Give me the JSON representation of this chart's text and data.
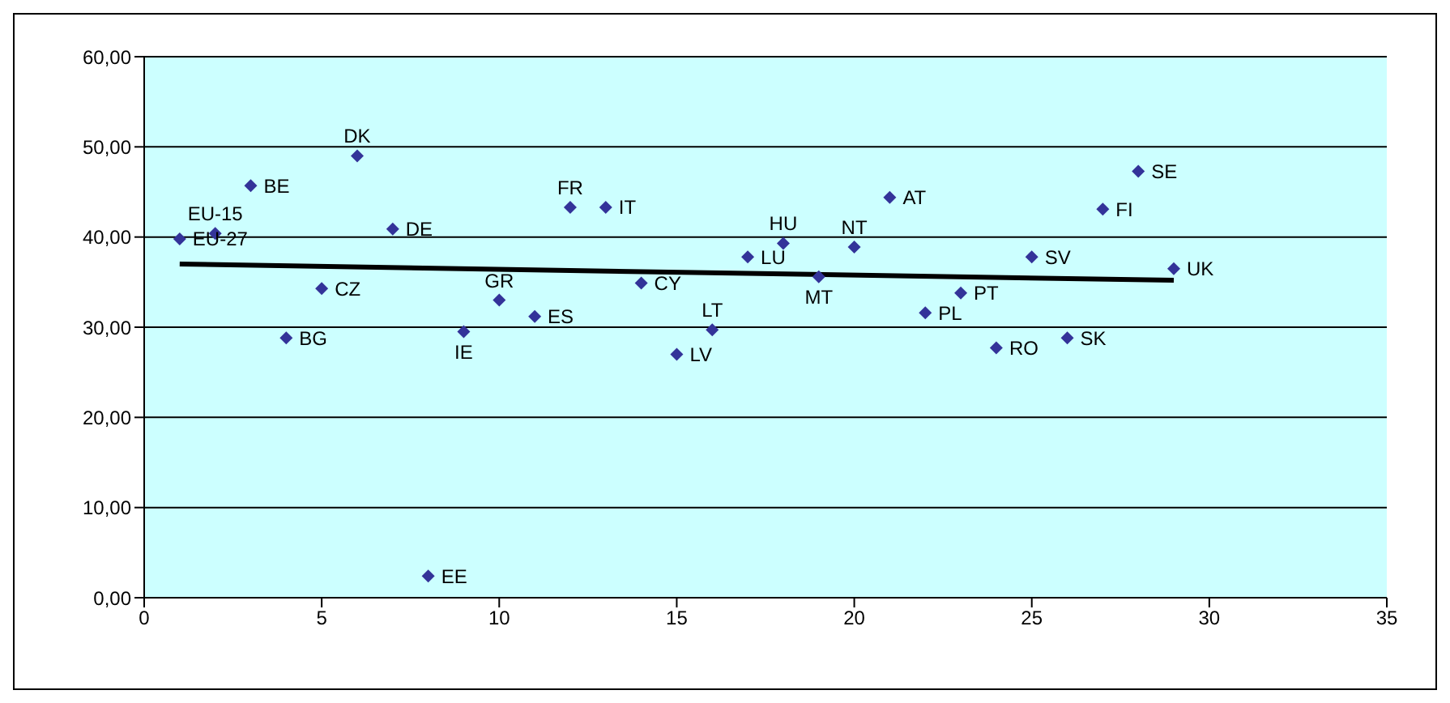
{
  "chart_data": {
    "type": "scatter",
    "x": [
      1,
      2,
      3,
      4,
      5,
      6,
      7,
      8,
      9,
      10,
      11,
      12,
      13,
      14,
      15,
      16,
      17,
      18,
      19,
      20,
      21,
      22,
      23,
      24,
      25,
      26,
      27,
      28,
      29
    ],
    "series": [
      {
        "type": "scatter",
        "color": "#333399",
        "marker": "diamond",
        "values": [
          39.8,
          40.4,
          45.7,
          28.8,
          34.3,
          49.0,
          40.9,
          2.4,
          29.5,
          33.0,
          31.2,
          43.3,
          43.3,
          34.9,
          27.0,
          29.7,
          37.8,
          39.3,
          35.6,
          38.9,
          44.4,
          31.6,
          33.8,
          27.7,
          37.8,
          28.8,
          43.1,
          47.3,
          36.5
        ]
      },
      {
        "type": "line",
        "color": "#000000",
        "x": [
          1,
          29
        ],
        "values": [
          37.0,
          35.2
        ]
      }
    ],
    "grid": "y",
    "legend": false,
    "xlim": [
      0,
      35
    ],
    "xticks": [
      0,
      5,
      10,
      15,
      20,
      25,
      30,
      35
    ],
    "ylim": [
      0,
      60
    ],
    "yticks": [
      {
        "value": 0,
        "label": "0,00"
      },
      {
        "value": 10,
        "label": "10,00"
      },
      {
        "value": 20,
        "label": "20,00"
      },
      {
        "value": 30,
        "label": "30,00"
      },
      {
        "value": 40,
        "label": "40,00"
      },
      {
        "value": 50,
        "label": "50,00"
      },
      {
        "value": 60,
        "label": "60,00"
      }
    ],
    "annotations": [
      {
        "text": "EU-27",
        "x": 1,
        "y": 39.8
      },
      {
        "text": "EU-15",
        "x": 2,
        "y": 40.4
      },
      {
        "text": "BE",
        "x": 3,
        "y": 45.7
      },
      {
        "text": "BG",
        "x": 4,
        "y": 28.8
      },
      {
        "text": "CZ",
        "x": 5,
        "y": 34.3
      },
      {
        "text": "DK",
        "x": 6,
        "y": 49.0
      },
      {
        "text": "DE",
        "x": 7,
        "y": 40.9
      },
      {
        "text": "EE",
        "x": 8,
        "y": 2.4
      },
      {
        "text": "IE",
        "x": 9,
        "y": 29.5
      },
      {
        "text": "GR",
        "x": 10,
        "y": 33.0
      },
      {
        "text": "ES",
        "x": 11,
        "y": 31.2
      },
      {
        "text": "FR",
        "x": 12,
        "y": 43.3
      },
      {
        "text": "IT",
        "x": 13,
        "y": 43.3
      },
      {
        "text": "CY",
        "x": 14,
        "y": 34.9
      },
      {
        "text": "LV",
        "x": 15,
        "y": 27.0
      },
      {
        "text": "LT",
        "x": 16,
        "y": 29.7
      },
      {
        "text": "LU",
        "x": 17,
        "y": 37.8
      },
      {
        "text": "HU",
        "x": 18,
        "y": 39.3
      },
      {
        "text": "MT",
        "x": 19,
        "y": 35.6
      },
      {
        "text": "NT",
        "x": 20,
        "y": 38.9
      },
      {
        "text": "AT",
        "x": 21,
        "y": 44.4
      },
      {
        "text": "PL",
        "x": 22,
        "y": 31.6
      },
      {
        "text": "PT",
        "x": 23,
        "y": 33.8
      },
      {
        "text": "RO",
        "x": 24,
        "y": 27.7
      },
      {
        "text": "SV",
        "x": 25,
        "y": 37.8
      },
      {
        "text": "SK",
        "x": 26,
        "y": 28.8
      },
      {
        "text": "FI",
        "x": 27,
        "y": 43.1
      },
      {
        "text": "SE",
        "x": 28,
        "y": 47.3
      },
      {
        "text": "UK",
        "x": 29,
        "y": 36.5
      }
    ]
  }
}
